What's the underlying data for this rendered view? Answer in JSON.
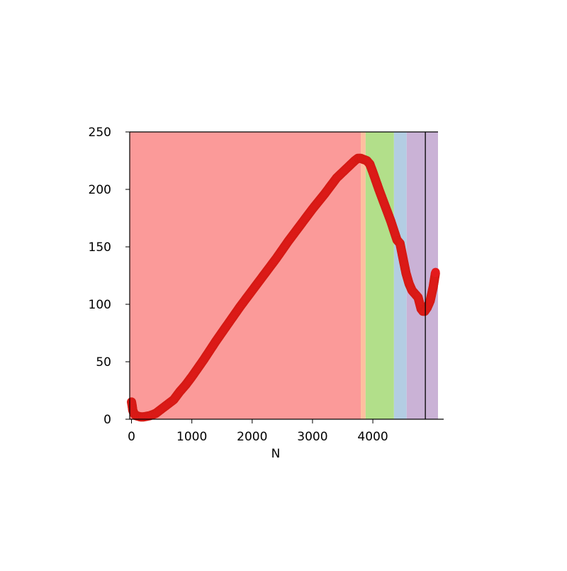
{
  "chart_data": {
    "type": "scatter",
    "title": "",
    "xlabel": "N",
    "ylabel": "",
    "xlim": [
      -30,
      5080
    ],
    "ylim": [
      0,
      250
    ],
    "x_ticks": [
      {
        "value": 0,
        "label": "0"
      },
      {
        "value": 1000,
        "label": "1000"
      },
      {
        "value": 2000,
        "label": "2000"
      },
      {
        "value": 3000,
        "label": "3000"
      },
      {
        "value": 4000,
        "label": "4000"
      }
    ],
    "y_ticks": [
      {
        "value": 0,
        "label": "0"
      },
      {
        "value": 50,
        "label": "50"
      },
      {
        "value": 100,
        "label": "100"
      },
      {
        "value": 150,
        "label": "150"
      },
      {
        "value": 200,
        "label": "200"
      },
      {
        "value": 250,
        "label": "250"
      }
    ],
    "grid": false,
    "legend": "none",
    "background_bands": [
      {
        "x_start": -30,
        "x_end": 3800,
        "color": "#fb9a99"
      },
      {
        "x_start": 3800,
        "x_end": 3880,
        "color": "#fdbf9f"
      },
      {
        "x_start": 3880,
        "x_end": 4350,
        "color": "#b2df8a"
      },
      {
        "x_start": 4350,
        "x_end": 4560,
        "color": "#b3cde3"
      },
      {
        "x_start": 4560,
        "x_end": 5080,
        "color": "#cab2d6"
      }
    ],
    "vertical_line": {
      "x": 4870,
      "color": "#000000"
    },
    "marker_color": "#e41a1c",
    "series": [
      {
        "x": [
          0,
          10,
          20,
          40,
          80,
          150,
          200,
          300,
          400,
          500,
          600,
          700,
          800,
          900,
          1000,
          1200,
          1400,
          1600,
          1800,
          2000,
          2200,
          2400,
          2600,
          2800,
          3000,
          3200,
          3400,
          3600,
          3700,
          3750,
          3800,
          3850,
          3900,
          3950,
          4000,
          4100,
          4200,
          4300,
          4400,
          4450,
          4500,
          4550,
          4600,
          4650,
          4700,
          4750,
          4800,
          4830,
          4860,
          4900,
          4950,
          5000,
          5040
        ],
        "y": [
          15,
          12,
          8,
          5,
          3,
          2,
          2,
          3,
          5,
          9,
          13,
          17,
          24,
          30,
          37,
          52,
          68,
          83,
          98,
          112,
          126,
          140,
          155,
          169,
          183,
          196,
          210,
          220,
          225,
          227,
          227,
          226,
          225,
          222,
          215,
          200,
          186,
          172,
          156,
          153,
          140,
          127,
          118,
          112,
          109,
          106,
          96,
          94,
          94,
          97,
          103,
          115,
          128
        ]
      }
    ]
  }
}
